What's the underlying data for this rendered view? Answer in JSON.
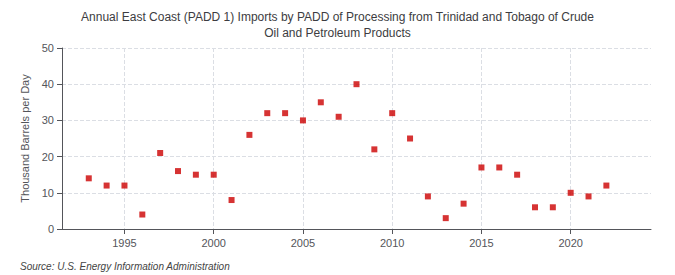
{
  "chart_data": {
    "type": "scatter",
    "title": "Annual East Coast (PADD 1) Imports by PADD of Processing from Trinidad and Tobago of Crude\nOil and Petroleum Products",
    "ylabel": "Thousand Barrels per Day",
    "annotations": [
      "Source: U.S. Energy Information Administration"
    ],
    "color": "#cc0000",
    "marker": "square",
    "x": [
      1993,
      1994,
      1995,
      1996,
      1997,
      1998,
      1999,
      2000,
      2001,
      2002,
      2003,
      2004,
      2005,
      2006,
      2007,
      2008,
      2009,
      2010,
      2011,
      2012,
      2013,
      2014,
      2015,
      2016,
      2017,
      2018,
      2019,
      2020,
      2021,
      2022,
      2023
    ],
    "values": [
      14,
      12,
      12,
      4,
      21,
      16,
      15,
      15,
      8,
      26,
      32,
      32,
      30,
      35,
      31,
      40,
      22,
      32,
      25,
      9,
      3,
      7,
      17,
      17,
      15,
      6,
      6,
      10,
      9,
      12,
      null
    ],
    "xlim": [
      1991.5,
      2024.5
    ],
    "xticks": [
      1995,
      2000,
      2005,
      2010,
      2015,
      2020
    ],
    "ylim": [
      0,
      50
    ],
    "yticks": [
      0,
      10,
      20,
      30,
      40,
      50
    ],
    "grid": true
  }
}
